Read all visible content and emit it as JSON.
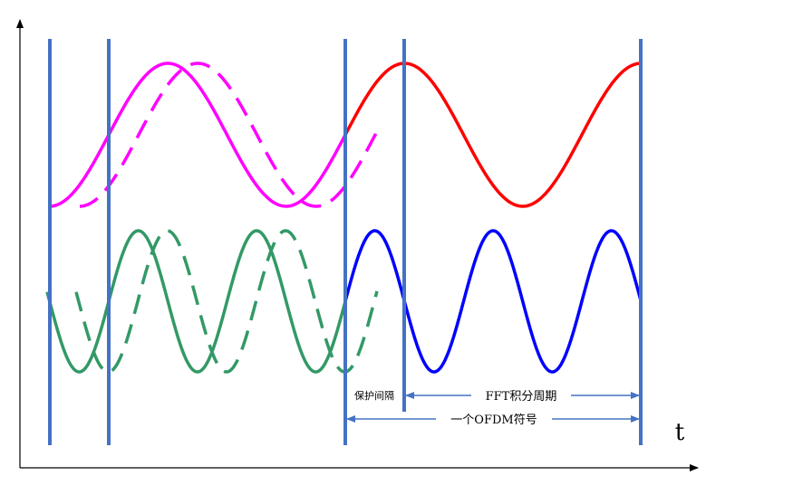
{
  "diagram": {
    "axis_label_t": "t",
    "guard_interval_label": "保护间隔",
    "fft_period_label": "FFT积分周期",
    "ofdm_symbol_label": "一个OFDM符号"
  },
  "colors": {
    "axis": "#000000",
    "boundary": "#4472C4",
    "low_freq_guard": "#FF00FF",
    "low_freq_symbol": "#FF0000",
    "high_freq_guard": "#339966",
    "high_freq_symbol": "#0000FF",
    "arrow": "#4472C4"
  }
}
